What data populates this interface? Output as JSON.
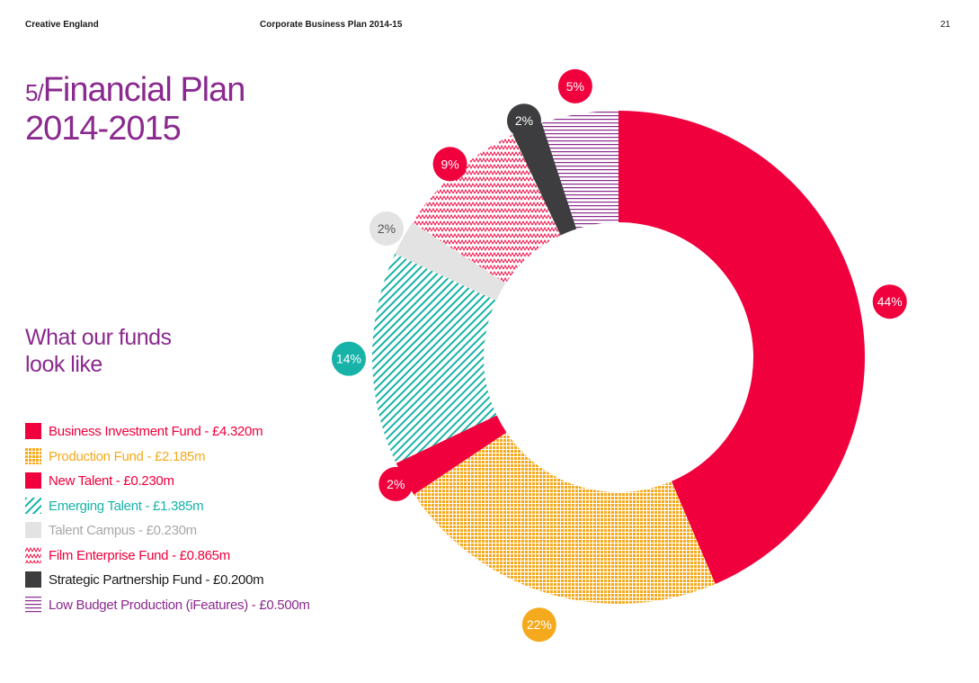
{
  "header": {
    "left": "Creative England",
    "center": "Corporate Business Plan 2014-15",
    "page_number": "21"
  },
  "title": {
    "prefix": "5/",
    "main": "Financial Plan",
    "line2": "2014-2015"
  },
  "subtitle": {
    "line1": "What our funds",
    "line2": "look like"
  },
  "colors": {
    "red": "#f0003c",
    "amber": "#f5a91c",
    "teal": "#17b3a8",
    "grey": "#e3e3e3",
    "dark": "#3d3d3f",
    "purple": "#8a2a8e",
    "legend_grey_text": "#a8a8a8"
  },
  "chart_data": {
    "type": "pie",
    "style": "donut",
    "title": "What our funds look like",
    "series": [
      {
        "name": "Business Investment Fund",
        "amount_label": "£4.320m",
        "value_m": 4.32,
        "percent_label": "44%",
        "legend": "Business Investment Fund - £4.320m"
      },
      {
        "name": "Production Fund",
        "amount_label": "£2.185m",
        "value_m": 2.185,
        "percent_label": "22%",
        "legend": "Production Fund - £2.185m"
      },
      {
        "name": "New Talent",
        "amount_label": "£0.230m",
        "value_m": 0.23,
        "percent_label": "2%",
        "legend": "New Talent - £0.230m"
      },
      {
        "name": "Emerging Talent",
        "amount_label": "£1.385m",
        "value_m": 1.385,
        "percent_label": "14%",
        "legend": "Emerging Talent - £1.385m"
      },
      {
        "name": "Talent Campus",
        "amount_label": "£0.230m",
        "value_m": 0.23,
        "percent_label": "2%",
        "legend": "Talent Campus - £0.230m"
      },
      {
        "name": "Film Enterprise Fund",
        "amount_label": "£0.865m",
        "value_m": 0.865,
        "percent_label": "9%",
        "legend": "Film Enterprise Fund - £0.865m"
      },
      {
        "name": "Strategic Partnership Fund",
        "amount_label": "£0.200m",
        "value_m": 0.2,
        "percent_label": "2%",
        "legend": "Strategic Partnership Fund - £0.200m"
      },
      {
        "name": "Low Budget Production (iFeatures)",
        "amount_label": "£0.500m",
        "value_m": 0.5,
        "percent_label": "5%",
        "legend": "Low Budget Production (iFeatures) - £0.500m"
      }
    ]
  }
}
